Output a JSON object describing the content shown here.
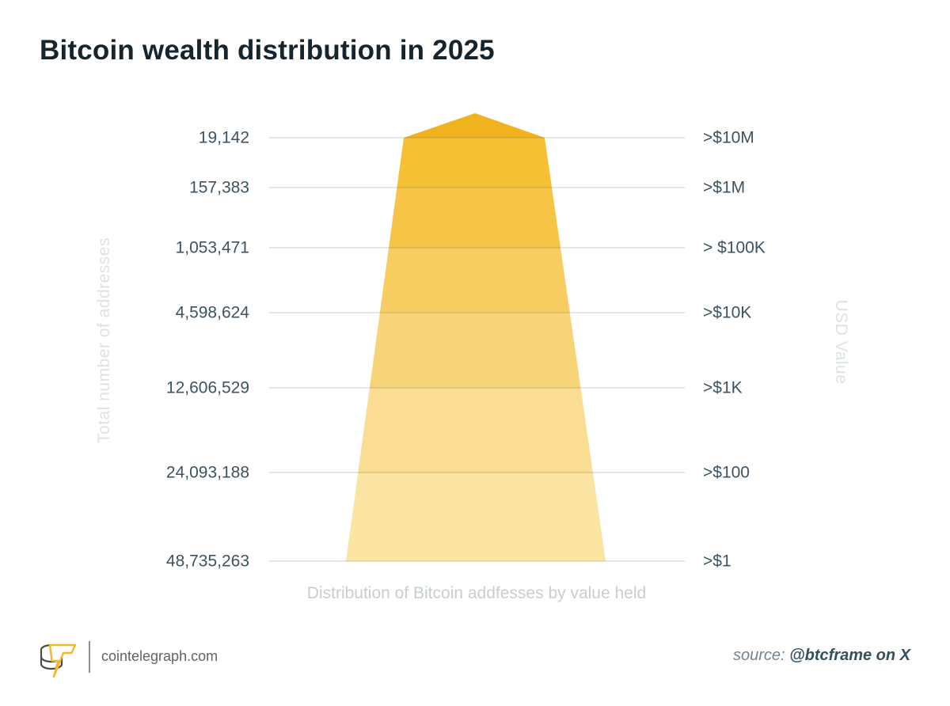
{
  "title": "Bitcoin wealth distribution in 2025",
  "chart_data": {
    "type": "funnel",
    "title": "Bitcoin wealth distribution in 2025",
    "left_axis_label": "Total number of addresses",
    "right_axis_label": "USD Value",
    "caption": "Distribution of Bitcoin addfesses by value held",
    "categories": [
      ">$10M",
      ">$1M",
      "> $100K",
      ">$10K",
      ">$1K",
      ">$100",
      ">$1"
    ],
    "values": [
      19142,
      157383,
      1053471,
      4598624,
      12606529,
      24093188,
      48735263
    ],
    "rows": [
      {
        "addresses": "19,142",
        "threshold": ">$10M"
      },
      {
        "addresses": "157,383",
        "threshold": ">$1M"
      },
      {
        "addresses": "1,053,471",
        "threshold": "> $100K"
      },
      {
        "addresses": "4,598,624",
        "threshold": ">$10K"
      },
      {
        "addresses": "12,606,529",
        "threshold": ">$1K"
      },
      {
        "addresses": "24,093,188",
        "threshold": ">$100"
      },
      {
        "addresses": "48,735,263",
        "threshold": ">$1"
      }
    ],
    "band_colors": [
      "#F0B31E",
      "#F5C033",
      "#F6C548",
      "#F7CC60",
      "#F8D478",
      "#FADD92",
      "#FCE5A2"
    ],
    "gridline_color": "#d9dee2",
    "legend": "none",
    "grid": "horizontal"
  },
  "footer": {
    "site": "cointelegraph.com",
    "source_prefix": "source:",
    "source_credit": "@btcframe on X",
    "logo_accent_color": "#F2B72A",
    "logo_coin_color": "#4a4a4a"
  }
}
